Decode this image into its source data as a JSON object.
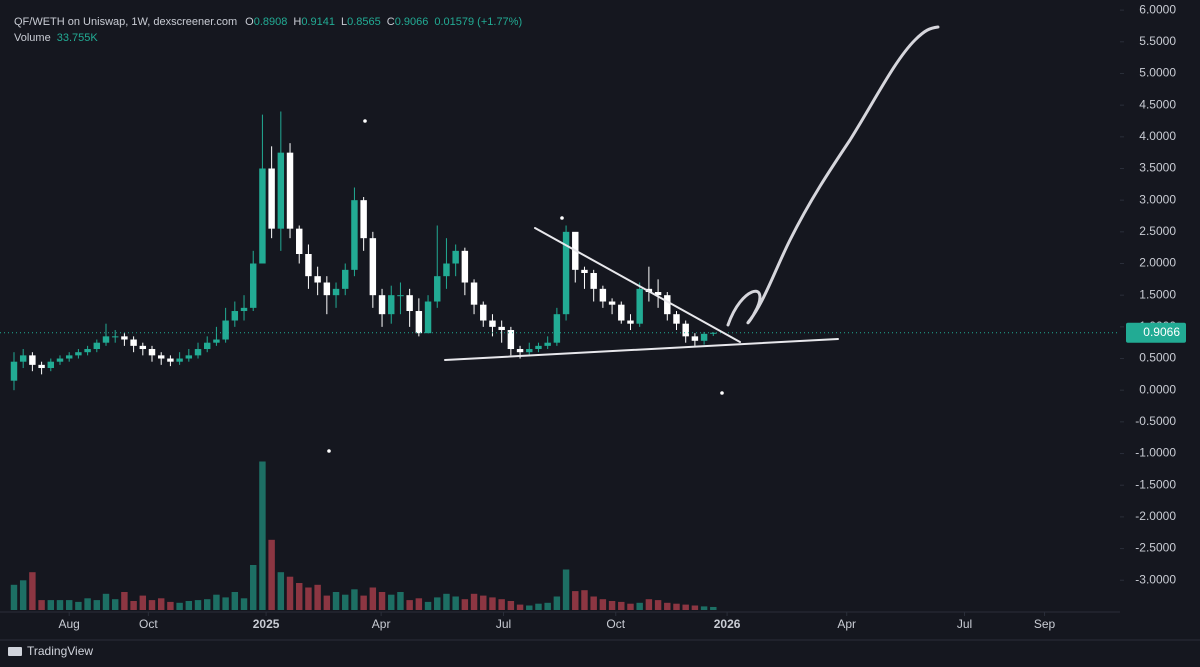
{
  "chart_data": {
    "type": "candlestick",
    "legend": {
      "title": "QF/WETH on Uniswap, 1W, dexscreener.com",
      "o": "O",
      "h": "H",
      "l": "L",
      "c": "C",
      "change": "0.01579 (+1.77%)",
      "volume_title": "Volume",
      "volume_label": "33.755K"
    },
    "footer": "TradingView",
    "up_color": "#22ab94",
    "down_color": "#ffffff",
    "volume_up_color": "#1d6f64",
    "volume_down_color": "#8c3642",
    "open": [
      0.15,
      0.45,
      0.55,
      0.4,
      0.35,
      0.45,
      0.5,
      0.55,
      0.6,
      0.65,
      0.75,
      0.85,
      0.85,
      0.8,
      0.7,
      0.65,
      0.55,
      0.5,
      0.45,
      0.5,
      0.55,
      0.65,
      0.75,
      0.8,
      1.1,
      1.25,
      1.3,
      2.0,
      3.5,
      2.55,
      3.75,
      2.55,
      2.15,
      1.8,
      1.7,
      1.5,
      1.6,
      1.9,
      3.0,
      2.4,
      1.5,
      1.2,
      1.5,
      1.5,
      1.25,
      0.9,
      1.4,
      1.8,
      2.0,
      2.2,
      1.7,
      1.35,
      1.1,
      1.0,
      0.95,
      0.65,
      0.6,
      0.65,
      0.7,
      0.75,
      1.2,
      2.5,
      1.9,
      1.85,
      1.6,
      1.4,
      1.35,
      1.1,
      1.05,
      1.6,
      1.55,
      1.5,
      1.2,
      1.05,
      0.85,
      0.78,
      0.8908
    ],
    "high": [
      0.6,
      0.65,
      0.6,
      0.45,
      0.5,
      0.55,
      0.6,
      0.65,
      0.7,
      0.8,
      1.05,
      0.95,
      0.9,
      0.85,
      0.75,
      0.7,
      0.6,
      0.55,
      0.6,
      0.65,
      0.75,
      0.85,
      1.0,
      1.3,
      1.4,
      1.5,
      2.2,
      4.35,
      3.85,
      4.4,
      3.9,
      2.6,
      2.3,
      1.95,
      1.8,
      1.7,
      2.0,
      3.2,
      3.05,
      2.5,
      1.6,
      1.65,
      1.7,
      1.6,
      1.45,
      1.5,
      2.6,
      2.4,
      2.3,
      2.25,
      1.75,
      1.4,
      1.2,
      1.1,
      1.0,
      0.7,
      0.75,
      0.75,
      0.85,
      1.3,
      2.6,
      2.45,
      1.95,
      1.9,
      1.65,
      1.45,
      1.4,
      1.2,
      1.7,
      1.95,
      1.75,
      1.55,
      1.25,
      1.1,
      0.9,
      0.92,
      0.9141
    ],
    "low": [
      0.0,
      0.35,
      0.3,
      0.25,
      0.3,
      0.4,
      0.45,
      0.5,
      0.55,
      0.6,
      0.7,
      0.75,
      0.7,
      0.6,
      0.55,
      0.45,
      0.4,
      0.38,
      0.4,
      0.45,
      0.5,
      0.6,
      0.7,
      0.75,
      1.0,
      1.1,
      1.25,
      2.0,
      2.4,
      2.2,
      2.4,
      2.0,
      1.6,
      1.5,
      1.2,
      1.3,
      1.5,
      1.8,
      2.2,
      1.3,
      1.0,
      1.05,
      1.2,
      1.0,
      0.85,
      0.9,
      1.3,
      1.6,
      1.8,
      1.5,
      1.2,
      1.0,
      0.85,
      0.75,
      0.55,
      0.5,
      0.55,
      0.6,
      0.65,
      0.7,
      1.1,
      1.7,
      1.6,
      1.4,
      1.3,
      1.2,
      1.05,
      0.95,
      1.0,
      1.4,
      1.3,
      1.1,
      0.95,
      0.75,
      0.7,
      0.72,
      0.8565
    ],
    "close": [
      0.45,
      0.55,
      0.4,
      0.35,
      0.45,
      0.5,
      0.55,
      0.6,
      0.65,
      0.75,
      0.85,
      0.85,
      0.8,
      0.7,
      0.65,
      0.55,
      0.5,
      0.45,
      0.5,
      0.55,
      0.65,
      0.75,
      0.8,
      1.1,
      1.25,
      1.3,
      2.0,
      3.5,
      2.55,
      3.75,
      2.55,
      2.15,
      1.8,
      1.7,
      1.5,
      1.6,
      1.9,
      3.0,
      2.4,
      1.5,
      1.2,
      1.5,
      1.5,
      1.25,
      0.9,
      1.4,
      1.8,
      2.0,
      2.2,
      1.7,
      1.35,
      1.1,
      1.0,
      0.95,
      0.65,
      0.6,
      0.65,
      0.7,
      0.75,
      1.2,
      2.5,
      1.9,
      1.85,
      1.6,
      1.4,
      1.35,
      1.1,
      1.05,
      1.6,
      1.55,
      1.5,
      1.2,
      1.05,
      0.85,
      0.78,
      0.89,
      0.9066
    ],
    "volume": [
      280,
      330,
      420,
      110,
      110,
      110,
      110,
      90,
      130,
      110,
      180,
      120,
      200,
      100,
      160,
      110,
      130,
      90,
      80,
      100,
      110,
      120,
      170,
      140,
      200,
      130,
      500,
      1650,
      780,
      420,
      370,
      300,
      250,
      280,
      160,
      200,
      170,
      230,
      160,
      250,
      200,
      170,
      200,
      110,
      130,
      90,
      140,
      180,
      150,
      120,
      180,
      160,
      140,
      120,
      100,
      60,
      50,
      70,
      80,
      150,
      450,
      210,
      220,
      150,
      120,
      100,
      90,
      70,
      80,
      120,
      110,
      80,
      70,
      60,
      50,
      40,
      33.755
    ],
    "xlim": [
      -1.52,
      120.2
    ],
    "xticks": [
      {
        "value": 6.0,
        "label": "Aug"
      },
      {
        "value": 14.6,
        "label": "Oct"
      },
      {
        "value": 27.4,
        "label": "2025"
      },
      {
        "value": 39.9,
        "label": "Apr"
      },
      {
        "value": 53.2,
        "label": "Jul"
      },
      {
        "value": 65.4,
        "label": "Oct"
      },
      {
        "value": 77.5,
        "label": "2026"
      },
      {
        "value": 90.5,
        "label": "Apr"
      },
      {
        "value": 103.3,
        "label": "Jul"
      },
      {
        "value": 112.0,
        "label": "Sep"
      }
    ],
    "ylim": [
      -3.47,
      6.16
    ],
    "yticks": [
      {
        "value": 6,
        "label": "6.0000"
      },
      {
        "value": 5.5,
        "label": "5.5000"
      },
      {
        "value": 5,
        "label": "5.0000"
      },
      {
        "value": 4.5,
        "label": "4.5000"
      },
      {
        "value": 4,
        "label": "4.0000"
      },
      {
        "value": 3.5,
        "label": "3.5000"
      },
      {
        "value": 3,
        "label": "3.0000"
      },
      {
        "value": 2.5,
        "label": "2.5000"
      },
      {
        "value": 2,
        "label": "2.0000"
      },
      {
        "value": 1.5,
        "label": "1.5000"
      },
      {
        "value": 1,
        "label": "1.0000"
      },
      {
        "value": 0.5,
        "label": "0.5000"
      },
      {
        "value": 0,
        "label": "0.0000"
      },
      {
        "value": -0.5,
        "label": "-0.5000"
      },
      {
        "value": -1,
        "label": "-1.0000"
      },
      {
        "value": -1.5,
        "label": "-1.5000"
      },
      {
        "value": -2,
        "label": "-2.0000"
      },
      {
        "value": -2.5,
        "label": "-2.5000"
      },
      {
        "value": -3,
        "label": "-3.0000"
      }
    ],
    "grid": false
  }
}
